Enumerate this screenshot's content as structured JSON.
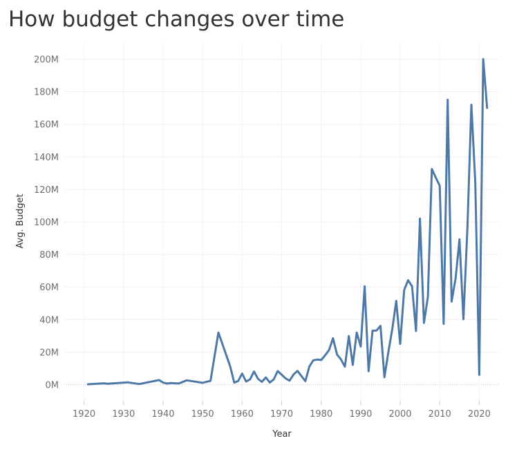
{
  "chart_data": {
    "type": "line",
    "title": "How budget changes over time",
    "xlabel": "Year",
    "ylabel": "Avg. Budget",
    "xlim": [
      1915,
      2025
    ],
    "ylim": [
      -10000000,
      210000000
    ],
    "x_ticks": [
      1920,
      1930,
      1940,
      1950,
      1960,
      1970,
      1980,
      1990,
      2000,
      2010,
      2020
    ],
    "y_ticks": [
      0,
      20000000,
      40000000,
      60000000,
      80000000,
      100000000,
      120000000,
      140000000,
      160000000,
      180000000,
      200000000
    ],
    "y_tick_labels": [
      "0M",
      "20M",
      "40M",
      "60M",
      "80M",
      "100M",
      "120M",
      "140M",
      "160M",
      "180M",
      "200M"
    ],
    "grid": true,
    "series": [
      {
        "color": "#4e79a7",
        "x": [
          1921,
          1925,
          1926,
          1931,
          1934,
          1939,
          1940,
          1941,
          1942,
          1944,
          1946,
          1950,
          1952,
          1954,
          1957,
          1958,
          1959,
          1960,
          1961,
          1962,
          1963,
          1964,
          1965,
          1966,
          1967,
          1968,
          1969,
          1971,
          1972,
          1973,
          1974,
          1976,
          1977,
          1978,
          1979,
          1980,
          1981,
          1982,
          1983,
          1984,
          1985,
          1986,
          1987,
          1988,
          1989,
          1990,
          1991,
          1992,
          1993,
          1994,
          1995,
          1996,
          1997,
          1998,
          1999,
          2000,
          2001,
          2002,
          2003,
          2004,
          2005,
          2006,
          2007,
          2008,
          2009,
          2010,
          2011,
          2012,
          2013,
          2014,
          2015,
          2016,
          2017,
          2018,
          2019,
          2020,
          2021,
          2022
        ],
        "y": [
          0.2,
          0.8,
          0.5,
          1.4,
          0.3,
          2.8,
          1.2,
          0.6,
          0.9,
          0.7,
          2.6,
          1.1,
          2.3,
          32,
          11,
          1.2,
          2.2,
          6.8,
          1.9,
          3.2,
          8.1,
          3.6,
          1.7,
          4.4,
          1.3,
          3.2,
          8.3,
          3.8,
          2.4,
          6.2,
          8.4,
          2.1,
          11,
          14.9,
          15.4,
          15.1,
          18,
          21.2,
          28.5,
          18.5,
          15.5,
          11,
          29.8,
          12.1,
          32,
          23.4,
          60.4,
          8.2,
          33.1,
          33.2,
          36.1,
          4.5,
          20,
          34.2,
          51.4,
          25,
          58.2,
          64.1,
          60.4,
          32.9,
          102,
          37.9,
          54,
          132.5,
          127.2,
          122.2,
          37.3,
          175,
          51,
          65,
          89.2,
          40.2,
          96.5,
          172,
          124,
          6,
          200,
          170
        ]
      }
    ]
  }
}
